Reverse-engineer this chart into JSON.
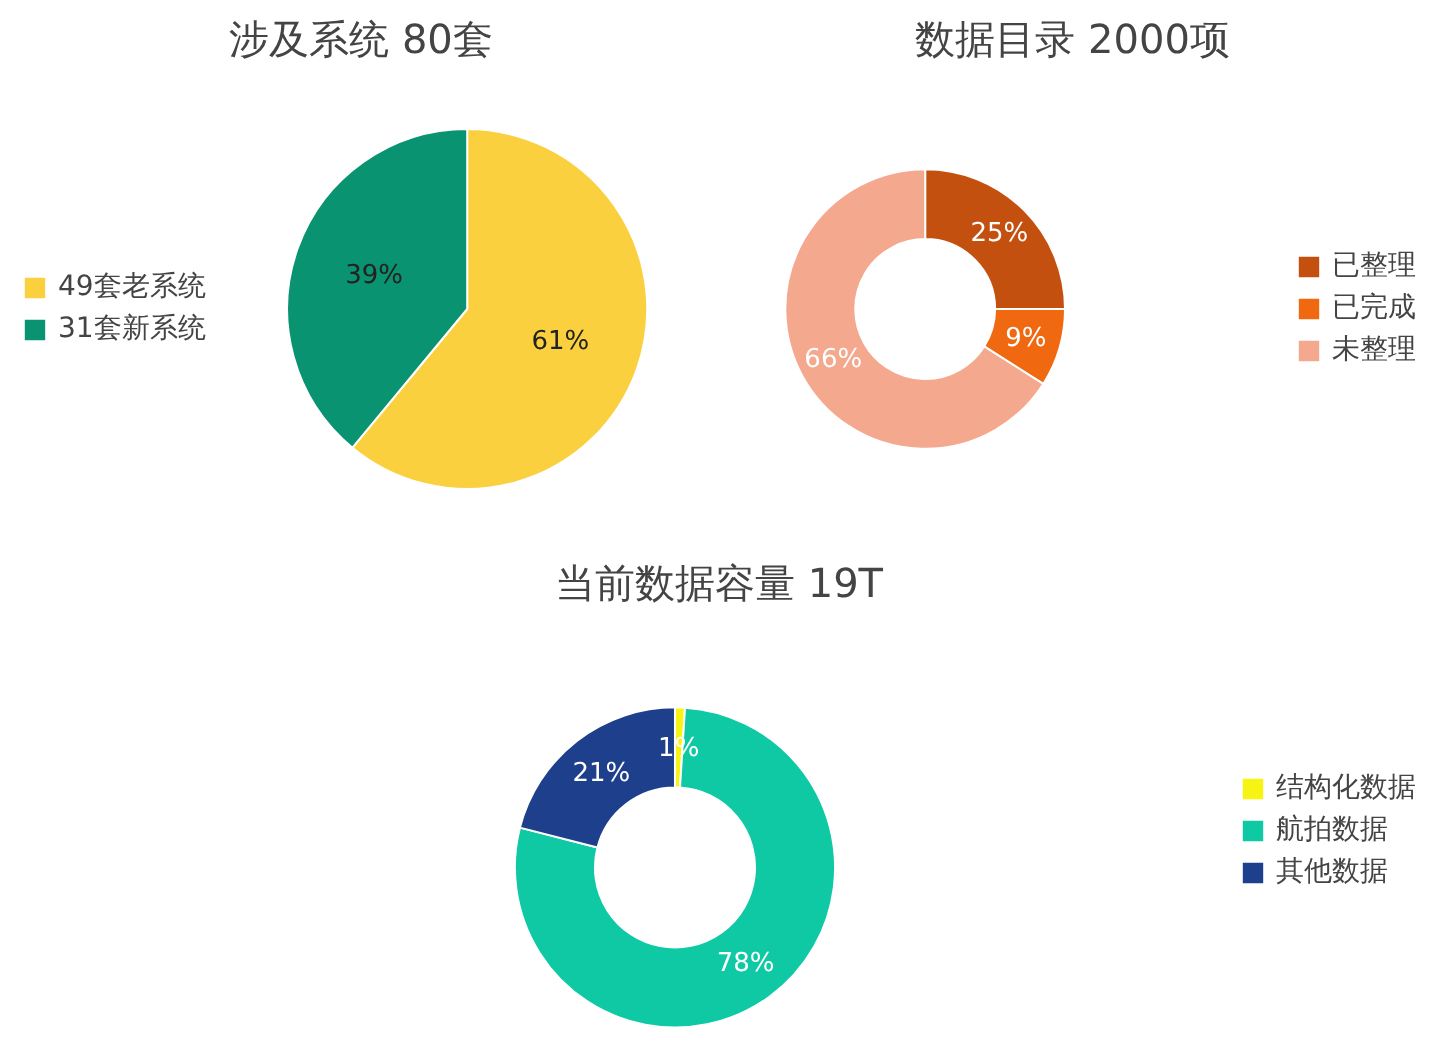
{
  "chart_data": [
    {
      "type": "pie",
      "title": "涉及系统 80套",
      "categories": [
        "49套老系统",
        "31套新系统"
      ],
      "values": [
        61,
        39
      ],
      "colors": [
        "#fbd03f",
        "#0a9370"
      ],
      "value_labels": [
        "61%",
        "39%"
      ],
      "legend": "left"
    },
    {
      "type": "donut",
      "title": "数据目录  2000项",
      "categories": [
        "已整理",
        "已完成",
        "未整理"
      ],
      "values": [
        25,
        9,
        66
      ],
      "colors": [
        "#c4500f",
        "#f0680f",
        "#f4a88e"
      ],
      "value_labels": [
        "25%",
        "9%",
        "66%"
      ],
      "legend": "right"
    },
    {
      "type": "donut",
      "title": "当前数据容量 19T",
      "categories": [
        "结构化数据",
        "航拍数据",
        "其他数据"
      ],
      "values": [
        1,
        78,
        21
      ],
      "colors": [
        "#f7f312",
        "#0ec9a4",
        "#1d3f8c"
      ],
      "value_labels": [
        "1%",
        "78%",
        "21%"
      ],
      "legend": "right"
    }
  ]
}
